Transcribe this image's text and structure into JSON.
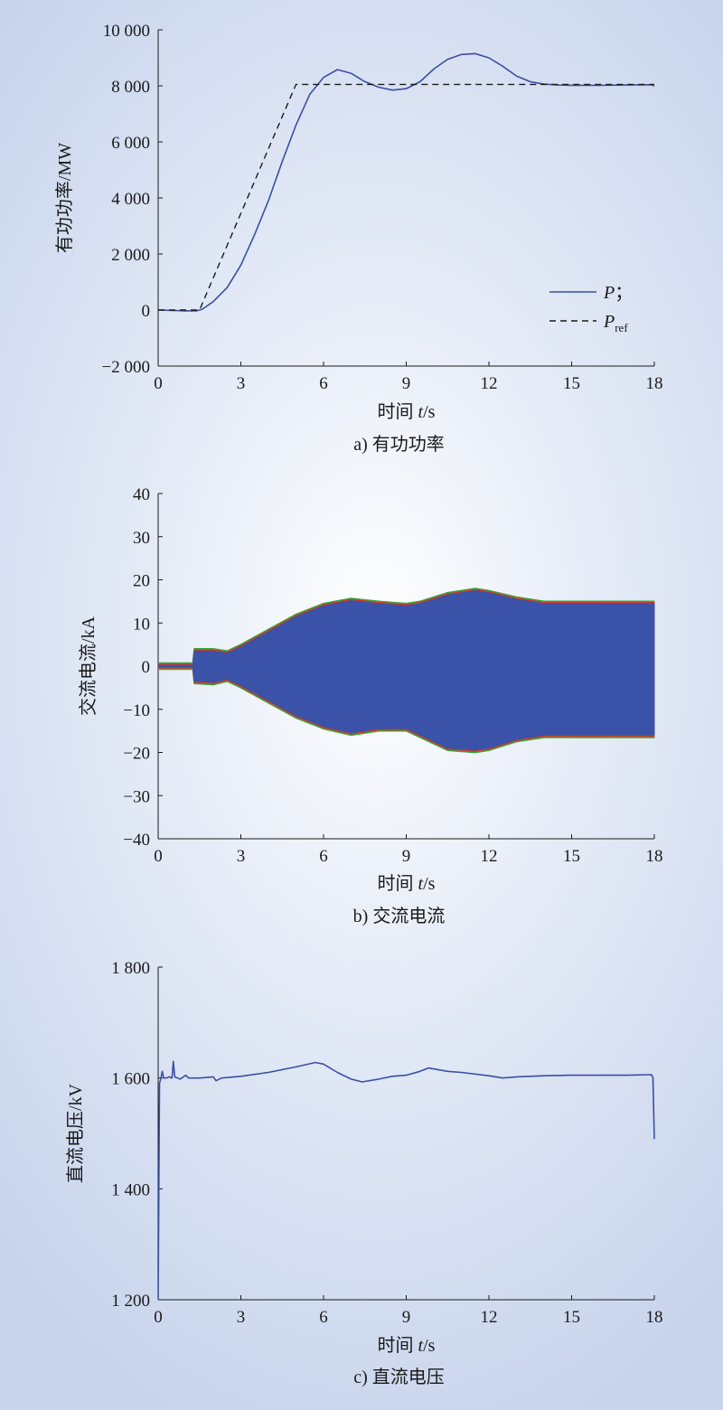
{
  "chart_data": [
    {
      "type": "line",
      "caption": "a) 有功功率",
      "xlabel_prefix": "时间 ",
      "xlabel_var": "t",
      "xlabel_unit": "/s",
      "ylabel": "有功功率/MW",
      "xlim": [
        0,
        18
      ],
      "ylim": [
        -2000,
        10000
      ],
      "xticks": [
        0,
        3,
        6,
        9,
        12,
        15,
        18
      ],
      "xtick_labels": [
        "0",
        "3",
        "6",
        "9",
        "12",
        "15",
        "18"
      ],
      "yticks": [
        -2000,
        0,
        2000,
        4000,
        6000,
        8000,
        10000
      ],
      "ytick_labels": [
        "−2 000",
        "0",
        "2 000",
        "4 000",
        "6 000",
        "8 000",
        "10 000"
      ],
      "legend_position": "bottom-right",
      "grid": false,
      "series": [
        {
          "name": "P",
          "legend_var": "P",
          "legend_suffix": "；",
          "color": "#3a4fa3",
          "style": "solid",
          "points": [
            [
              0,
              0
            ],
            [
              1.0,
              -30
            ],
            [
              1.4,
              -30
            ],
            [
              1.6,
              30
            ],
            [
              2.0,
              300
            ],
            [
              2.5,
              800
            ],
            [
              3.0,
              1600
            ],
            [
              3.5,
              2700
            ],
            [
              4.0,
              3900
            ],
            [
              4.5,
              5300
            ],
            [
              5.0,
              6600
            ],
            [
              5.5,
              7700
            ],
            [
              6.0,
              8300
            ],
            [
              6.5,
              8580
            ],
            [
              7.0,
              8450
            ],
            [
              7.5,
              8150
            ],
            [
              8.0,
              7950
            ],
            [
              8.5,
              7850
            ],
            [
              9.0,
              7900
            ],
            [
              9.5,
              8150
            ],
            [
              10.0,
              8600
            ],
            [
              10.5,
              8950
            ],
            [
              11.0,
              9120
            ],
            [
              11.5,
              9150
            ],
            [
              12.0,
              9000
            ],
            [
              12.5,
              8700
            ],
            [
              13.0,
              8350
            ],
            [
              13.5,
              8150
            ],
            [
              14.0,
              8060
            ],
            [
              14.5,
              8030
            ],
            [
              15.0,
              8020
            ],
            [
              16.0,
              8020
            ],
            [
              17.0,
              8030
            ],
            [
              17.9,
              8040
            ],
            [
              18.0,
              8000
            ]
          ]
        },
        {
          "name": "P_ref",
          "legend_var": "P",
          "legend_sub": "ref",
          "color": "#1a1a1a",
          "style": "dashed",
          "points": [
            [
              0,
              0
            ],
            [
              1.5,
              0
            ],
            [
              5.0,
              8050
            ],
            [
              18.0,
              8050
            ]
          ]
        }
      ]
    },
    {
      "type": "area",
      "caption": "b) 交流电流",
      "xlabel_prefix": "时间 ",
      "xlabel_var": "t",
      "xlabel_unit": "/s",
      "ylabel": "交流电流/kA",
      "xlim": [
        0,
        18
      ],
      "ylim": [
        -40,
        40
      ],
      "xticks": [
        0,
        3,
        6,
        9,
        12,
        15,
        18
      ],
      "xtick_labels": [
        "0",
        "3",
        "6",
        "9",
        "12",
        "15",
        "18"
      ],
      "yticks": [
        -40,
        -30,
        -20,
        -10,
        0,
        10,
        20,
        30,
        40
      ],
      "ytick_labels": [
        "−40",
        "−30",
        "−20",
        "−10",
        "0",
        "10",
        "20",
        "30",
        "40"
      ],
      "grid": false,
      "envelope_colors": [
        "#3aa63a",
        "#d03a2a",
        "#3a52a8"
      ],
      "envelope": [
        {
          "x": 0.0,
          "upper": 0.2,
          "lower": -0.2
        },
        {
          "x": 1.25,
          "upper": 0.2,
          "lower": -0.2
        },
        {
          "x": 1.3,
          "upper": 3.5,
          "lower": -3.5
        },
        {
          "x": 2.0,
          "upper": 3.5,
          "lower": -3.8
        },
        {
          "x": 2.5,
          "upper": 3.0,
          "lower": -3.0
        },
        {
          "x": 3.0,
          "upper": 4.5,
          "lower": -4.5
        },
        {
          "x": 4.0,
          "upper": 8.0,
          "lower": -8.0
        },
        {
          "x": 5.0,
          "upper": 11.5,
          "lower": -11.5
        },
        {
          "x": 6.0,
          "upper": 14.0,
          "lower": -14.0
        },
        {
          "x": 7.0,
          "upper": 15.2,
          "lower": -15.5
        },
        {
          "x": 8.0,
          "upper": 14.5,
          "lower": -14.5
        },
        {
          "x": 9.0,
          "upper": 14.0,
          "lower": -14.5
        },
        {
          "x": 9.5,
          "upper": 14.5,
          "lower": -16.0
        },
        {
          "x": 10.5,
          "upper": 16.5,
          "lower": -19.0
        },
        {
          "x": 11.5,
          "upper": 17.5,
          "lower": -19.5
        },
        {
          "x": 12.0,
          "upper": 17.0,
          "lower": -19.0
        },
        {
          "x": 13.0,
          "upper": 15.5,
          "lower": -17.0
        },
        {
          "x": 14.0,
          "upper": 14.5,
          "lower": -16.0
        },
        {
          "x": 15.0,
          "upper": 14.5,
          "lower": -16.0
        },
        {
          "x": 18.0,
          "upper": 14.5,
          "lower": -16.0
        }
      ]
    },
    {
      "type": "line",
      "caption": "c) 直流电压",
      "xlabel_prefix": "时间 ",
      "xlabel_var": "t",
      "xlabel_unit": "/s",
      "ylabel": "直流电压/kV",
      "xlim": [
        0,
        18
      ],
      "ylim": [
        1200,
        1800
      ],
      "xticks": [
        0,
        3,
        6,
        9,
        12,
        15,
        18
      ],
      "xtick_labels": [
        "0",
        "3",
        "6",
        "9",
        "12",
        "15",
        "18"
      ],
      "yticks": [
        1200,
        1400,
        1600,
        1800
      ],
      "ytick_labels": [
        "1 200",
        "1 400",
        "1 600",
        "1 800"
      ],
      "grid": false,
      "series": [
        {
          "name": "",
          "color": "#3a4fa3",
          "style": "solid",
          "points": [
            [
              0.0,
              1200
            ],
            [
              0.05,
              1590
            ],
            [
              0.1,
              1600
            ],
            [
              0.15,
              1612
            ],
            [
              0.2,
              1600
            ],
            [
              0.3,
              1600
            ],
            [
              0.4,
              1602
            ],
            [
              0.5,
              1600
            ],
            [
              0.55,
              1630
            ],
            [
              0.6,
              1602
            ],
            [
              0.8,
              1598
            ],
            [
              1.0,
              1605
            ],
            [
              1.1,
              1600
            ],
            [
              1.5,
              1600
            ],
            [
              2.0,
              1602
            ],
            [
              2.1,
              1595
            ],
            [
              2.3,
              1600
            ],
            [
              3.0,
              1603
            ],
            [
              4.0,
              1610
            ],
            [
              5.0,
              1620
            ],
            [
              5.7,
              1628
            ],
            [
              6.0,
              1625
            ],
            [
              6.5,
              1610
            ],
            [
              7.0,
              1598
            ],
            [
              7.4,
              1593
            ],
            [
              8.0,
              1598
            ],
            [
              8.5,
              1603
            ],
            [
              9.0,
              1605
            ],
            [
              9.5,
              1612
            ],
            [
              9.8,
              1618
            ],
            [
              10.5,
              1612
            ],
            [
              11.0,
              1610
            ],
            [
              12.0,
              1604
            ],
            [
              12.5,
              1600
            ],
            [
              13.0,
              1602
            ],
            [
              14.0,
              1604
            ],
            [
              15.0,
              1605
            ],
            [
              16.0,
              1605
            ],
            [
              17.0,
              1605
            ],
            [
              17.9,
              1606
            ],
            [
              17.95,
              1600
            ],
            [
              18.0,
              1490
            ]
          ]
        }
      ]
    }
  ]
}
